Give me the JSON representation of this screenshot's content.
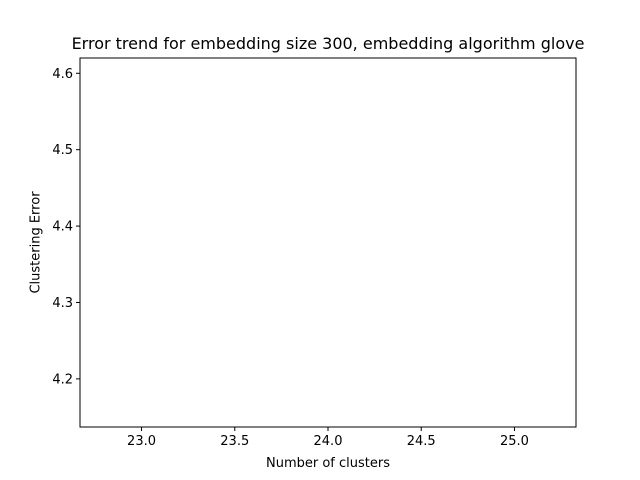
{
  "chart_data": {
    "type": "line",
    "title": "Error trend for embedding size 300, embedding algorithm glove",
    "xlabel": "Number of clusters",
    "ylabel": "Clustering Error",
    "xlim": [
      22.67,
      25.33
    ],
    "ylim": [
      4.137,
      4.62
    ],
    "xticks": [
      23.0,
      23.5,
      24.0,
      24.5,
      25.0
    ],
    "xtick_labels": [
      "23.0",
      "23.5",
      "24.0",
      "24.5",
      "25.0"
    ],
    "yticks": [
      4.2,
      4.3,
      4.4,
      4.5,
      4.6
    ],
    "ytick_labels": [
      "4.2",
      "4.3",
      "4.4",
      "4.5",
      "4.6"
    ],
    "grid": false,
    "series": [
      {
        "x": [
          23,
          24,
          25
        ],
        "values": [
          null,
          null,
          null
        ],
        "color": "#1f77b4"
      }
    ]
  }
}
